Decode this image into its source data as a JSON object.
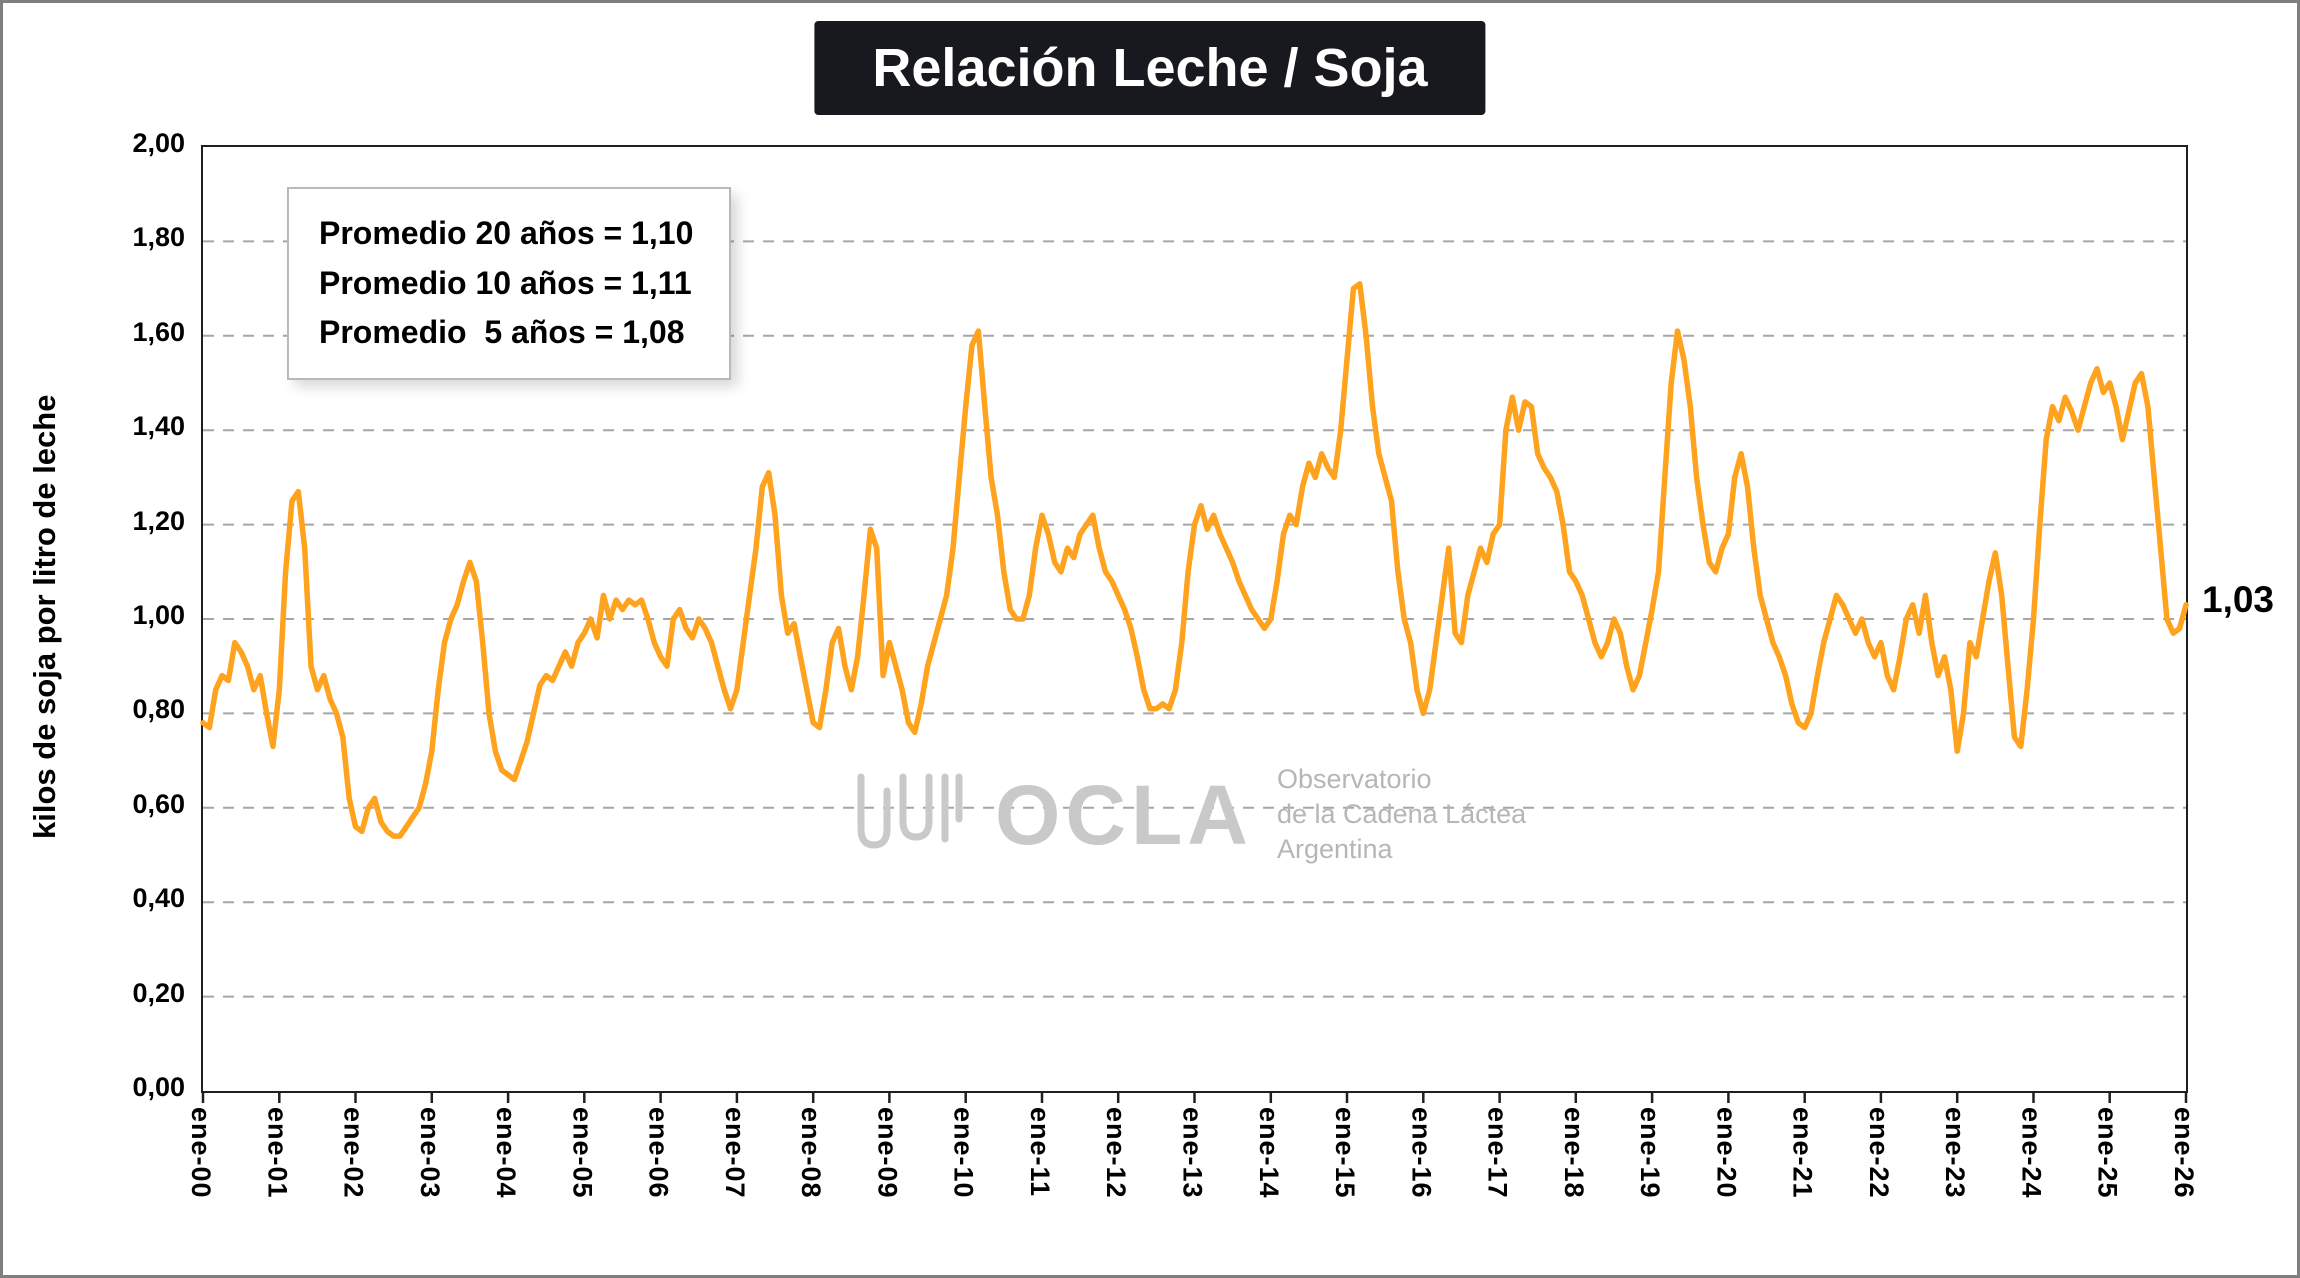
{
  "title": "Relación Leche / Soja",
  "end_label": "1,03",
  "annotation": {
    "lines": [
      "Promedio 20 años = 1,10",
      "Promedio 10 años = 1,11",
      "Promedio  5 años = 1,08"
    ]
  },
  "watermark": {
    "brand": "OCLA",
    "lines": [
      "Observatorio",
      "de la Cadena Láctea",
      "Argentina"
    ]
  },
  "colors": {
    "line": "#FFA21D",
    "title_bg": "#18181f",
    "grid": "#a6a6a6",
    "axis": "#1f1f1f",
    "outer_border": "#7f7f7f",
    "watermark_grey": "#c9c9c9"
  },
  "chart_data": {
    "type": "line",
    "title": "Relación Leche / Soja",
    "xlabel": "",
    "ylabel": "kilos de soja por litro de leche",
    "ylim": [
      0,
      2.0
    ],
    "ytick_step": 0.2,
    "ytick_labels": [
      "0,00",
      "0,20",
      "0,40",
      "0,60",
      "0,80",
      "1,00",
      "1,20",
      "1,40",
      "1,60",
      "1,80",
      "2,00"
    ],
    "xtick_labels": [
      "ene-00",
      "ene-01",
      "ene-02",
      "ene-03",
      "ene-04",
      "ene-05",
      "ene-06",
      "ene-07",
      "ene-08",
      "ene-09",
      "ene-10",
      "ene-11",
      "ene-12",
      "ene-13",
      "ene-14",
      "ene-15",
      "ene-16",
      "ene-17",
      "ene-18",
      "ene-19",
      "ene-20",
      "ene-21",
      "ene-22",
      "ene-23",
      "ene-24",
      "ene-25",
      "ene-26"
    ],
    "frequency": "monthly",
    "points_per_year": 12,
    "grid": "horizontal-dashed",
    "legend": "none",
    "averages": {
      "years_20": 1.1,
      "years_10": 1.11,
      "years_5": 1.08
    },
    "last_value": 1.03,
    "series": [
      {
        "name": "Relación Leche / Soja",
        "color": "#FFA21D",
        "values": [
          0.78,
          0.77,
          0.85,
          0.88,
          0.87,
          0.95,
          0.93,
          0.9,
          0.85,
          0.88,
          0.8,
          0.73,
          0.85,
          1.1,
          1.25,
          1.27,
          1.15,
          0.9,
          0.85,
          0.88,
          0.83,
          0.8,
          0.75,
          0.62,
          0.56,
          0.55,
          0.6,
          0.62,
          0.57,
          0.55,
          0.54,
          0.54,
          0.56,
          0.58,
          0.6,
          0.65,
          0.72,
          0.85,
          0.95,
          1.0,
          1.03,
          1.08,
          1.12,
          1.08,
          0.95,
          0.8,
          0.72,
          0.68,
          0.67,
          0.66,
          0.7,
          0.74,
          0.8,
          0.86,
          0.88,
          0.87,
          0.9,
          0.93,
          0.9,
          0.95,
          0.97,
          1.0,
          0.96,
          1.05,
          1.0,
          1.04,
          1.02,
          1.04,
          1.03,
          1.04,
          1.0,
          0.95,
          0.92,
          0.9,
          1.0,
          1.02,
          0.98,
          0.96,
          1.0,
          0.98,
          0.95,
          0.9,
          0.85,
          0.81,
          0.85,
          0.95,
          1.05,
          1.15,
          1.28,
          1.31,
          1.22,
          1.05,
          0.97,
          0.99,
          0.92,
          0.85,
          0.78,
          0.77,
          0.85,
          0.95,
          0.98,
          0.9,
          0.85,
          0.92,
          1.05,
          1.19,
          1.15,
          0.88,
          0.95,
          0.9,
          0.85,
          0.78,
          0.76,
          0.82,
          0.9,
          0.95,
          1.0,
          1.05,
          1.15,
          1.3,
          1.45,
          1.58,
          1.61,
          1.45,
          1.3,
          1.22,
          1.1,
          1.02,
          1.0,
          1.0,
          1.05,
          1.15,
          1.22,
          1.18,
          1.12,
          1.1,
          1.15,
          1.13,
          1.18,
          1.2,
          1.22,
          1.15,
          1.1,
          1.08,
          1.05,
          1.02,
          0.98,
          0.92,
          0.85,
          0.81,
          0.81,
          0.82,
          0.81,
          0.85,
          0.95,
          1.1,
          1.2,
          1.24,
          1.19,
          1.22,
          1.18,
          1.15,
          1.12,
          1.08,
          1.05,
          1.02,
          1.0,
          0.98,
          1.0,
          1.08,
          1.18,
          1.22,
          1.2,
          1.28,
          1.33,
          1.3,
          1.35,
          1.32,
          1.3,
          1.4,
          1.55,
          1.7,
          1.71,
          1.6,
          1.45,
          1.35,
          1.3,
          1.25,
          1.1,
          1.0,
          0.95,
          0.85,
          0.8,
          0.85,
          0.95,
          1.05,
          1.15,
          0.97,
          0.95,
          1.05,
          1.1,
          1.15,
          1.12,
          1.18,
          1.2,
          1.4,
          1.47,
          1.4,
          1.46,
          1.45,
          1.35,
          1.32,
          1.3,
          1.27,
          1.2,
          1.1,
          1.08,
          1.05,
          1.0,
          0.95,
          0.92,
          0.95,
          1.0,
          0.97,
          0.9,
          0.85,
          0.88,
          0.95,
          1.02,
          1.1,
          1.3,
          1.5,
          1.61,
          1.55,
          1.45,
          1.3,
          1.2,
          1.12,
          1.1,
          1.15,
          1.18,
          1.3,
          1.35,
          1.28,
          1.15,
          1.05,
          1.0,
          0.95,
          0.92,
          0.88,
          0.82,
          0.78,
          0.77,
          0.8,
          0.88,
          0.95,
          1.0,
          1.05,
          1.03,
          1.0,
          0.97,
          1.0,
          0.95,
          0.92,
          0.95,
          0.88,
          0.85,
          0.92,
          1.0,
          1.03,
          0.97,
          1.05,
          0.95,
          0.88,
          0.92,
          0.85,
          0.72,
          0.8,
          0.95,
          0.92,
          1.0,
          1.08,
          1.14,
          1.05,
          0.9,
          0.75,
          0.73,
          0.85,
          1.0,
          1.2,
          1.38,
          1.45,
          1.42,
          1.47,
          1.44,
          1.4,
          1.45,
          1.5,
          1.53,
          1.48,
          1.5,
          1.45,
          1.38,
          1.44,
          1.5,
          1.52,
          1.45,
          1.3,
          1.15,
          1.0,
          0.97,
          0.98,
          1.03
        ]
      }
    ]
  }
}
